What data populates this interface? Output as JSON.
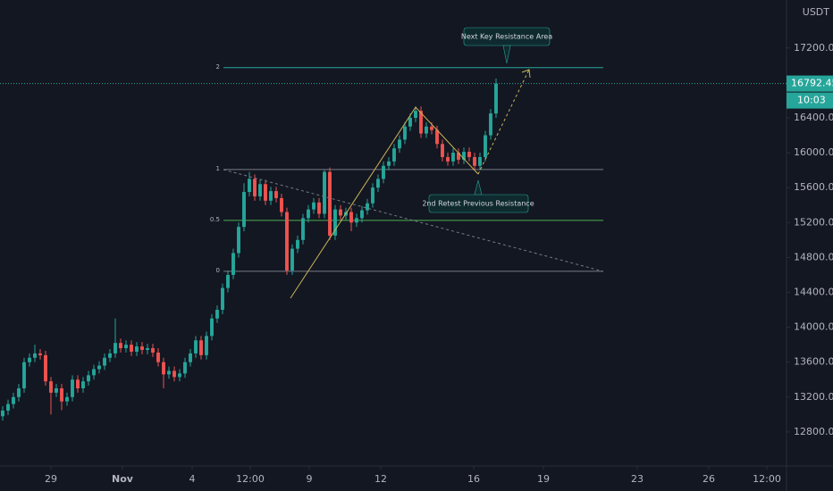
{
  "chart_data": {
    "type": "candlestick",
    "currency": "USDT",
    "countdown": "10:03",
    "up_color": "#26a69a",
    "down_color": "#ef5350",
    "grid": false,
    "xlim": [
      -0.5,
      146.17
    ],
    "xticks": [
      {
        "value": 9,
        "label": "29"
      },
      {
        "value": 22.33,
        "label": "Nov"
      },
      {
        "value": 35.33,
        "label": "4"
      },
      {
        "value": 46.17,
        "label": "12:00"
      },
      {
        "value": 57.17,
        "label": "9"
      },
      {
        "value": 70.5,
        "label": "12"
      },
      {
        "value": 87.83,
        "label": "16"
      },
      {
        "value": 100.83,
        "label": "19"
      },
      {
        "value": 118.33,
        "label": "23"
      },
      {
        "value": 131.67,
        "label": "26"
      },
      {
        "value": 142.5,
        "label": "12:00"
      }
    ],
    "ylim": [
      12410,
      17750
    ],
    "yticks": [
      {
        "value": 12800,
        "label": "12800.00"
      },
      {
        "value": 13200,
        "label": "13200.00"
      },
      {
        "value": 13600,
        "label": "13600.00"
      },
      {
        "value": 14000,
        "label": "14000.00"
      },
      {
        "value": 14400,
        "label": "14400.00"
      },
      {
        "value": 14800,
        "label": "14800.00"
      },
      {
        "value": 15200,
        "label": "15200.00"
      },
      {
        "value": 15600,
        "label": "15600.00"
      },
      {
        "value": 16000,
        "label": "16000.00"
      },
      {
        "value": 16400,
        "label": "16400.00"
      },
      {
        "value": 17200,
        "label": "17200.00"
      }
    ],
    "open": [
      12980,
      13045,
      13120,
      13200,
      13300,
      13600,
      13650,
      13700,
      13680,
      13380,
      13250,
      13300,
      13150,
      13200,
      13400,
      13300,
      13380,
      13450,
      13520,
      13560,
      13650,
      13700,
      13820,
      13760,
      13800,
      13720,
      13780,
      13740,
      13760,
      13710,
      13600,
      13460,
      13500,
      13430,
      13470,
      13600,
      13700,
      13850,
      13680,
      13900,
      14100,
      14200,
      14450,
      14600,
      14850,
      15150,
      15550,
      15700,
      15500,
      15640,
      15450,
      15560,
      15480,
      15320,
      14650,
      14900,
      15000,
      15250,
      15350,
      15430,
      15300,
      15780,
      15050,
      15350,
      15280,
      15320,
      15200,
      15250,
      15340,
      15420,
      15600,
      15700,
      15850,
      15900,
      16050,
      16150,
      16300,
      16400,
      16480,
      16220,
      16300,
      16260,
      16100,
      15950,
      15900,
      16000,
      15920,
      16010,
      15950,
      15850,
      15950,
      16200,
      16450
    ],
    "high": [
      13095,
      13170,
      13250,
      13350,
      13650,
      13700,
      13800,
      13750,
      13730,
      13430,
      13350,
      13350,
      13250,
      13450,
      13450,
      13430,
      13500,
      13570,
      13610,
      13700,
      13750,
      14100,
      13870,
      13850,
      13850,
      13830,
      13830,
      13810,
      13810,
      13760,
      13650,
      13550,
      13550,
      13520,
      13650,
      13750,
      13900,
      13900,
      13950,
      14150,
      14250,
      14500,
      14650,
      14900,
      15200,
      15650,
      15780,
      15750,
      15690,
      15690,
      15610,
      15610,
      15530,
      15370,
      14950,
      15050,
      15300,
      15400,
      15480,
      15480,
      15800,
      15830,
      15400,
      15400,
      15370,
      15370,
      15300,
      15390,
      15470,
      15650,
      15750,
      15900,
      15950,
      16100,
      16200,
      16350,
      16450,
      16530,
      16530,
      16350,
      16350,
      16310,
      16150,
      16000,
      16050,
      16050,
      16060,
      16060,
      16000,
      16000,
      16250,
      16500,
      16850
    ],
    "low": [
      12930,
      12995,
      13070,
      13150,
      13250,
      13550,
      13600,
      13630,
      13330,
      13000,
      13200,
      13050,
      13100,
      13150,
      13250,
      13250,
      13330,
      13400,
      13470,
      13510,
      13600,
      13650,
      13710,
      13710,
      13670,
      13670,
      13690,
      13690,
      13660,
      13550,
      13300,
      13410,
      13380,
      13380,
      13420,
      13550,
      13650,
      13630,
      13630,
      13850,
      14050,
      14150,
      14400,
      14550,
      14800,
      15100,
      15500,
      15450,
      15450,
      15400,
      15400,
      15430,
      15270,
      14600,
      14600,
      14850,
      14950,
      15200,
      15300,
      15250,
      15250,
      15000,
      15000,
      15230,
      15230,
      15100,
      15150,
      15200,
      15290,
      15370,
      15550,
      15650,
      15800,
      15850,
      16000,
      16100,
      16250,
      16350,
      16170,
      16170,
      16210,
      16050,
      15900,
      15850,
      15850,
      15870,
      15870,
      15900,
      15800,
      15800,
      15900,
      16150,
      16400
    ],
    "close": [
      13045,
      13120,
      13200,
      13300,
      13600,
      13650,
      13700,
      13680,
      13380,
      13250,
      13300,
      13150,
      13200,
      13400,
      13300,
      13380,
      13450,
      13520,
      13560,
      13650,
      13700,
      13820,
      13760,
      13800,
      13720,
      13780,
      13740,
      13760,
      13710,
      13600,
      13460,
      13500,
      13430,
      13470,
      13600,
      13700,
      13850,
      13680,
      13900,
      14100,
      14200,
      14450,
      14600,
      14850,
      15150,
      15550,
      15700,
      15500,
      15640,
      15450,
      15560,
      15480,
      15320,
      14650,
      14900,
      15000,
      15250,
      15350,
      15430,
      15300,
      15780,
      15050,
      15350,
      15280,
      15320,
      15200,
      15250,
      15340,
      15420,
      15600,
      15700,
      15850,
      15900,
      16050,
      16150,
      16300,
      16400,
      16480,
      16220,
      16300,
      16260,
      16100,
      15950,
      15900,
      16000,
      15920,
      16010,
      15950,
      15850,
      15950,
      16200,
      16450,
      16792.45
    ],
    "fib_levels": [
      {
        "ratio": 2,
        "price": 16975,
        "color": "#26a69a"
      },
      {
        "ratio": 1,
        "price": 15808,
        "color": "#787b86"
      },
      {
        "ratio": 0.5,
        "price": 15225,
        "color": "#4caf50"
      },
      {
        "ratio": 0,
        "price": 14642,
        "color": "#787b86"
      }
    ],
    "annotations": [
      "Next Key Resistance Area",
      "2nd Retest Previous Resistance"
    ]
  }
}
